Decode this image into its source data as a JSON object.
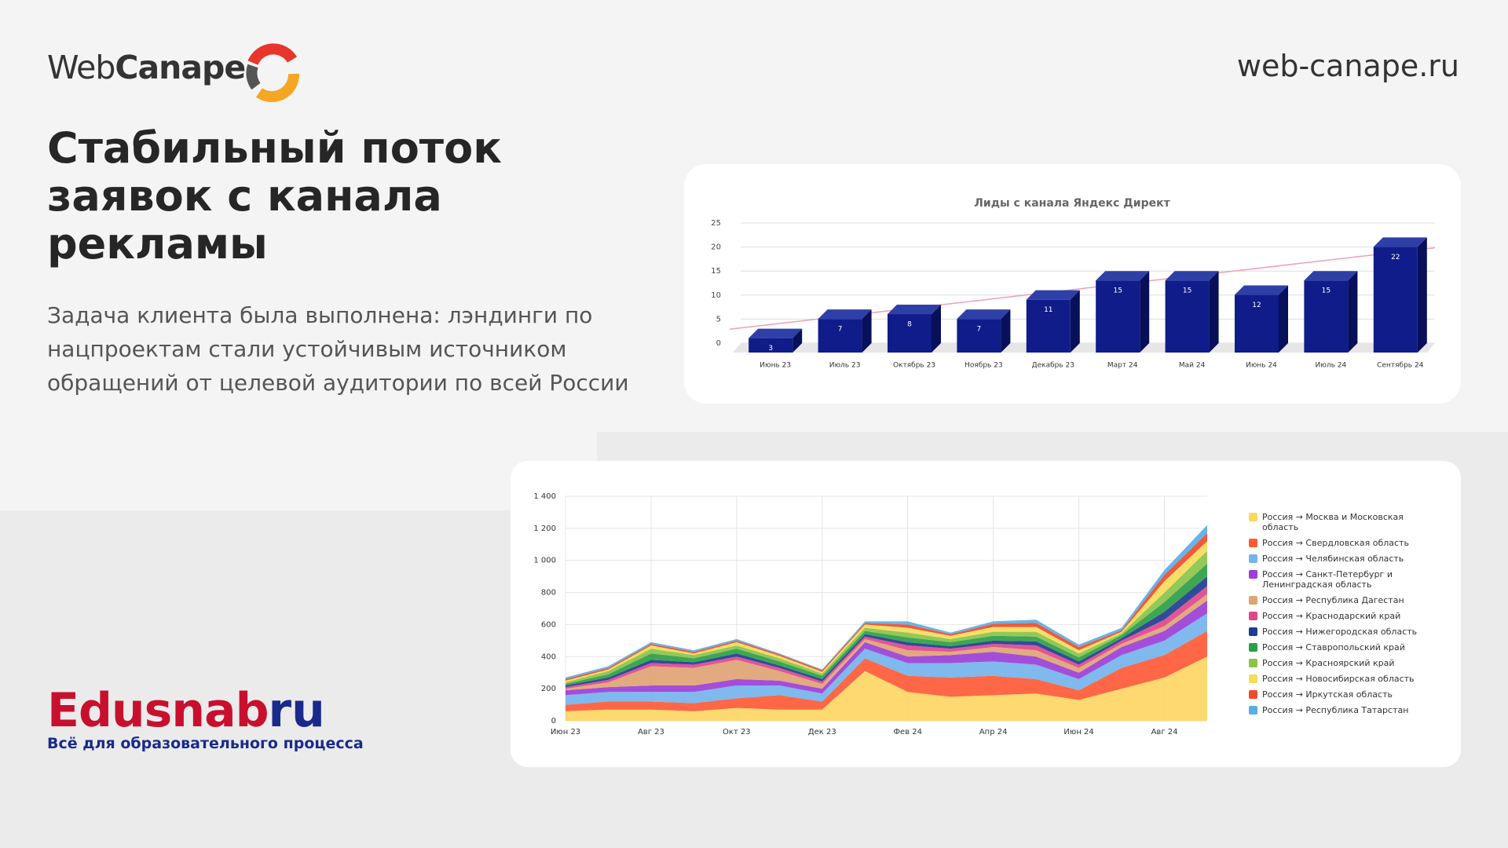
{
  "header": {
    "logo": "WebCanape",
    "logo_bold": "Canape",
    "site": "web-canape.ru"
  },
  "headline": "Стабильный поток заявок с канала рекламы",
  "body": "Задача клиента была выполнена: лэндинги по нацпроектам стали устойчивым источником обращений от целевой аудитории по всей России",
  "footer_logo": {
    "name": "Edusnab",
    "tld": "ru",
    "tagline": "Всё для образовательного процесса"
  },
  "chart_data": [
    {
      "type": "bar",
      "title": "Лиды с канала Яндекс Директ",
      "categories": [
        "Июнь 23",
        "Июль 23",
        "Октябрь 23",
        "Ноябрь 23",
        "Декабрь 23",
        "Март 24",
        "Май 24",
        "Июнь 24",
        "Июль 24",
        "Сентябрь 24"
      ],
      "values": [
        3,
        7,
        8,
        7,
        11,
        15,
        15,
        12,
        15,
        22
      ],
      "color": "#0f1c8a",
      "trendline_color": "#f0a0b8",
      "ylim": [
        0,
        25
      ],
      "yticks": [
        0,
        5,
        10,
        15,
        20,
        25
      ],
      "grid": true
    },
    {
      "type": "area",
      "stacked": true,
      "legend": "right",
      "grid": true,
      "categories": [
        "Июн 23",
        null,
        "Авг 23",
        null,
        "Окт 23",
        null,
        "Дек 23",
        null,
        "Фев 24",
        null,
        "Апр 24",
        null,
        "Июн 24",
        null,
        "Авг 24",
        null
      ],
      "ylim": [
        0,
        1400
      ],
      "yticks": [
        0,
        200,
        400,
        600,
        800,
        {
          "value": 1000,
          "label": "1 000"
        },
        {
          "value": 1200,
          "label": "1 200"
        },
        {
          "value": 1400,
          "label": "1 400"
        }
      ],
      "series": [
        {
          "name": "Россия → Москва и Московская область",
          "color": "#fdd663",
          "values": [
            60,
            70,
            70,
            60,
            80,
            70,
            70,
            310,
            180,
            150,
            160,
            170,
            130,
            200,
            270,
            400
          ]
        },
        {
          "name": "Россия → Свердловская область",
          "color": "#ff5a36",
          "values": [
            40,
            50,
            50,
            50,
            60,
            90,
            50,
            80,
            100,
            120,
            120,
            90,
            60,
            130,
            140,
            160
          ]
        },
        {
          "name": "Россия → Челябинская область",
          "color": "#74b3ec",
          "values": [
            60,
            60,
            60,
            70,
            80,
            60,
            50,
            60,
            80,
            90,
            90,
            90,
            70,
            80,
            90,
            110
          ]
        },
        {
          "name": "Россия → Санкт-Петербург и Ленинградская область",
          "color": "#9b3fd6",
          "values": [
            30,
            30,
            40,
            40,
            40,
            30,
            30,
            40,
            40,
            50,
            60,
            50,
            40,
            50,
            60,
            80
          ]
        },
        {
          "name": "Россия → Республика Дагестан",
          "color": "#e0a374",
          "values": [
            10,
            30,
            120,
            110,
            120,
            60,
            30,
            20,
            40,
            20,
            30,
            40,
            30,
            20,
            30,
            40
          ]
        },
        {
          "name": "Россия → Краснодарский край",
          "color": "#e0468c",
          "values": [
            10,
            15,
            20,
            20,
            20,
            20,
            15,
            15,
            30,
            20,
            20,
            30,
            20,
            20,
            40,
            50
          ]
        },
        {
          "name": "Россия → Нижегородская область",
          "color": "#1f3c93",
          "values": [
            10,
            15,
            20,
            15,
            20,
            15,
            15,
            15,
            20,
            15,
            20,
            25,
            20,
            15,
            50,
            60
          ]
        },
        {
          "name": "Россия → Ставропольский край",
          "color": "#2e9e44",
          "values": [
            10,
            20,
            40,
            25,
            30,
            25,
            20,
            20,
            30,
            25,
            30,
            30,
            25,
            20,
            60,
            80
          ]
        },
        {
          "name": "Россия → Красноярский край",
          "color": "#8bc34a",
          "values": [
            10,
            20,
            30,
            20,
            20,
            20,
            15,
            20,
            30,
            20,
            25,
            30,
            25,
            10,
            60,
            80
          ]
        },
        {
          "name": "Россия → Новосибирская область",
          "color": "#f6dc5a",
          "values": [
            10,
            10,
            20,
            10,
            20,
            15,
            10,
            20,
            30,
            20,
            30,
            30,
            20,
            10,
            70,
            60
          ]
        },
        {
          "name": "Россия → Иркутская область",
          "color": "#ee4b2b",
          "values": [
            10,
            10,
            10,
            10,
            10,
            10,
            10,
            10,
            20,
            10,
            20,
            25,
            20,
            10,
            40,
            50
          ]
        },
        {
          "name": "Россия → Республика Татарстан",
          "color": "#5aaee6",
          "values": [
            10,
            10,
            10,
            10,
            10,
            5,
            5,
            10,
            20,
            10,
            15,
            20,
            15,
            15,
            30,
            50
          ]
        }
      ]
    }
  ]
}
